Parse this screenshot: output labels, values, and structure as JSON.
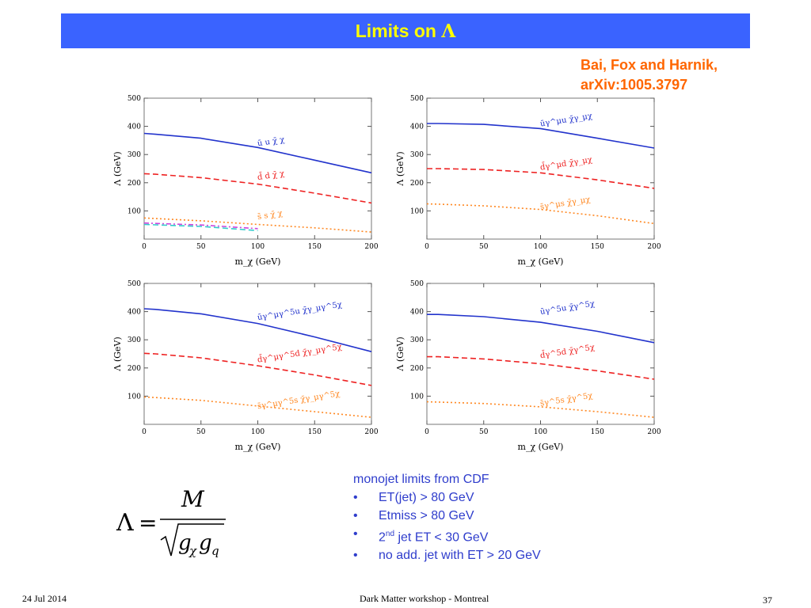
{
  "slide": {
    "title_text": "Limits on ",
    "title_symbol": "Λ",
    "citation_line1": "Bai, Fox and Harnik,",
    "citation_line2": "arXiv:1005.3797",
    "bullets_header": "monojet limits from CDF",
    "bullets": [
      {
        "dot": "•",
        "pre": "ET(jet) > 80 GeV",
        "sup": "",
        "post": ""
      },
      {
        "dot": "•",
        "pre": "Etmiss > 80 GeV",
        "sup": "",
        "post": ""
      },
      {
        "dot": "•",
        "pre": "2",
        "sup": "nd",
        "post": " jet ET < 30 GeV"
      },
      {
        "dot": "•",
        "pre": "no add. jet with ET > 20 GeV",
        "sup": "",
        "post": ""
      }
    ],
    "formula": {
      "lhs": "Λ",
      "eq": "=",
      "num": "M",
      "g": "g",
      "sub_chi": "χ",
      "sub_q": "q"
    },
    "footer_date": "24 Jul 2014",
    "footer_event": "Dark Matter workshop - Montreal",
    "footer_page": "37"
  },
  "colors": {
    "title_bg": "#3a63ff",
    "title_fg": "#ffff00",
    "citation": "#ff6600",
    "bullets": "#2f3dcc",
    "u": "#2233cc",
    "d": "#ee2222",
    "s": "#ff8822",
    "c": "#cc44dd",
    "b": "#33cccc"
  },
  "chart_data": [
    {
      "type": "line",
      "xlabel": "m_χ (GeV)",
      "ylabel": "Λ (GeV)",
      "xlim": [
        0,
        200
      ],
      "ylim": [
        0,
        500
      ],
      "xticks": [
        0,
        50,
        100,
        150,
        200
      ],
      "yticks": [
        100,
        200,
        300,
        400,
        500
      ],
      "series": [
        {
          "name": "u",
          "style": "solid",
          "color": "#2233cc",
          "x": [
            0,
            10,
            50,
            100,
            150,
            200
          ],
          "y": [
            375,
            372,
            358,
            325,
            280,
            235
          ]
        },
        {
          "name": "d",
          "style": "dashed",
          "color": "#ee2222",
          "x": [
            0,
            10,
            50,
            100,
            150,
            200
          ],
          "y": [
            232,
            230,
            218,
            195,
            163,
            128
          ]
        },
        {
          "name": "s",
          "style": "dotted",
          "color": "#ff8822",
          "x": [
            0,
            50,
            100,
            150,
            200
          ],
          "y": [
            75,
            65,
            52,
            40,
            25
          ]
        },
        {
          "name": "c",
          "style": "dashdot",
          "color": "#cc44dd",
          "x": [
            0,
            50,
            100
          ],
          "y": [
            57,
            50,
            37
          ]
        },
        {
          "name": "b",
          "style": "dashed",
          "color": "#33cccc",
          "x": [
            0,
            50,
            100
          ],
          "y": [
            52,
            45,
            30
          ]
        }
      ],
      "annotations": [
        {
          "text": "ū u χ̄ χ",
          "color": "#2233cc",
          "x": 100,
          "y": 330
        },
        {
          "text": "d̄ d χ̄ χ",
          "color": "#ee2222",
          "x": 100,
          "y": 210
        },
        {
          "text": "s̄ s χ̄ χ",
          "color": "#ff8822",
          "x": 100,
          "y": 70
        }
      ]
    },
    {
      "type": "line",
      "xlabel": "m_χ (GeV)",
      "ylabel": "Λ (GeV)",
      "xlim": [
        0,
        200
      ],
      "ylim": [
        0,
        500
      ],
      "xticks": [
        0,
        50,
        100,
        150,
        200
      ],
      "yticks": [
        100,
        200,
        300,
        400,
        500
      ],
      "series": [
        {
          "name": "u",
          "style": "solid",
          "color": "#2233cc",
          "x": [
            0,
            10,
            50,
            100,
            150,
            200
          ],
          "y": [
            410,
            410,
            407,
            392,
            358,
            323
          ]
        },
        {
          "name": "d",
          "style": "dashed",
          "color": "#ee2222",
          "x": [
            0,
            10,
            50,
            100,
            150,
            200
          ],
          "y": [
            250,
            250,
            247,
            235,
            210,
            180
          ]
        },
        {
          "name": "s",
          "style": "dotted",
          "color": "#ff8822",
          "x": [
            0,
            10,
            50,
            100,
            150,
            200
          ],
          "y": [
            125,
            124,
            118,
            105,
            83,
            55
          ]
        }
      ],
      "annotations": [
        {
          "text": "ūγ^μu χ̄γ_μχ",
          "color": "#2233cc",
          "x": 100,
          "y": 400
        },
        {
          "text": "d̄γ^μd χ̄γ_μχ",
          "color": "#ee2222",
          "x": 100,
          "y": 245
        },
        {
          "text": "s̄γ^μs χ̄γ_μχ",
          "color": "#ff8822",
          "x": 100,
          "y": 105
        }
      ]
    },
    {
      "type": "line",
      "xlabel": "m_χ (GeV)",
      "ylabel": "Λ (GeV)",
      "xlim": [
        0,
        200
      ],
      "ylim": [
        0,
        500
      ],
      "xticks": [
        0,
        50,
        100,
        150,
        200
      ],
      "yticks": [
        100,
        200,
        300,
        400,
        500
      ],
      "series": [
        {
          "name": "u",
          "style": "solid",
          "color": "#2233cc",
          "x": [
            0,
            10,
            50,
            100,
            150,
            200
          ],
          "y": [
            410,
            408,
            392,
            358,
            310,
            258
          ]
        },
        {
          "name": "d",
          "style": "dashed",
          "color": "#ee2222",
          "x": [
            0,
            10,
            50,
            100,
            150,
            200
          ],
          "y": [
            252,
            250,
            236,
            208,
            175,
            138
          ]
        },
        {
          "name": "s",
          "style": "dotted",
          "color": "#ff8822",
          "x": [
            0,
            10,
            50,
            100,
            150,
            200
          ],
          "y": [
            97,
            95,
            85,
            65,
            45,
            25
          ]
        }
      ],
      "annotations": [
        {
          "text": "ūγ^μγ^5u χ̄γ_μγ^5χ",
          "color": "#2233cc",
          "x": 100,
          "y": 370
        },
        {
          "text": "d̄γ^μγ^5d χ̄γ_μγ^5χ",
          "color": "#ee2222",
          "x": 100,
          "y": 220
        },
        {
          "text": "s̄γ^μγ^5s χ̄γ_μγ^5χ",
          "color": "#ff8822",
          "x": 100,
          "y": 55
        }
      ]
    },
    {
      "type": "line",
      "xlabel": "m_χ (GeV)",
      "ylabel": "Λ (GeV)",
      "xlim": [
        0,
        200
      ],
      "ylim": [
        0,
        500
      ],
      "xticks": [
        0,
        50,
        100,
        150,
        200
      ],
      "yticks": [
        100,
        200,
        300,
        400,
        500
      ],
      "series": [
        {
          "name": "u",
          "style": "solid",
          "color": "#2233cc",
          "x": [
            0,
            10,
            50,
            100,
            150,
            200
          ],
          "y": [
            390,
            390,
            382,
            362,
            330,
            290
          ]
        },
        {
          "name": "d",
          "style": "dashed",
          "color": "#ee2222",
          "x": [
            0,
            10,
            50,
            100,
            150,
            200
          ],
          "y": [
            240,
            240,
            232,
            215,
            190,
            160
          ]
        },
        {
          "name": "s",
          "style": "dotted",
          "color": "#ff8822",
          "x": [
            0,
            10,
            50,
            100,
            150,
            200
          ],
          "y": [
            80,
            79,
            74,
            62,
            45,
            25
          ]
        }
      ],
      "annotations": [
        {
          "text": "ūγ^5u χ̄γ^5χ",
          "color": "#2233cc",
          "x": 100,
          "y": 390
        },
        {
          "text": "d̄γ^5d χ̄γ^5χ",
          "color": "#ee2222",
          "x": 100,
          "y": 235
        },
        {
          "text": "s̄γ^5s χ̄γ^5χ",
          "color": "#ff8822",
          "x": 100,
          "y": 65
        }
      ]
    }
  ]
}
